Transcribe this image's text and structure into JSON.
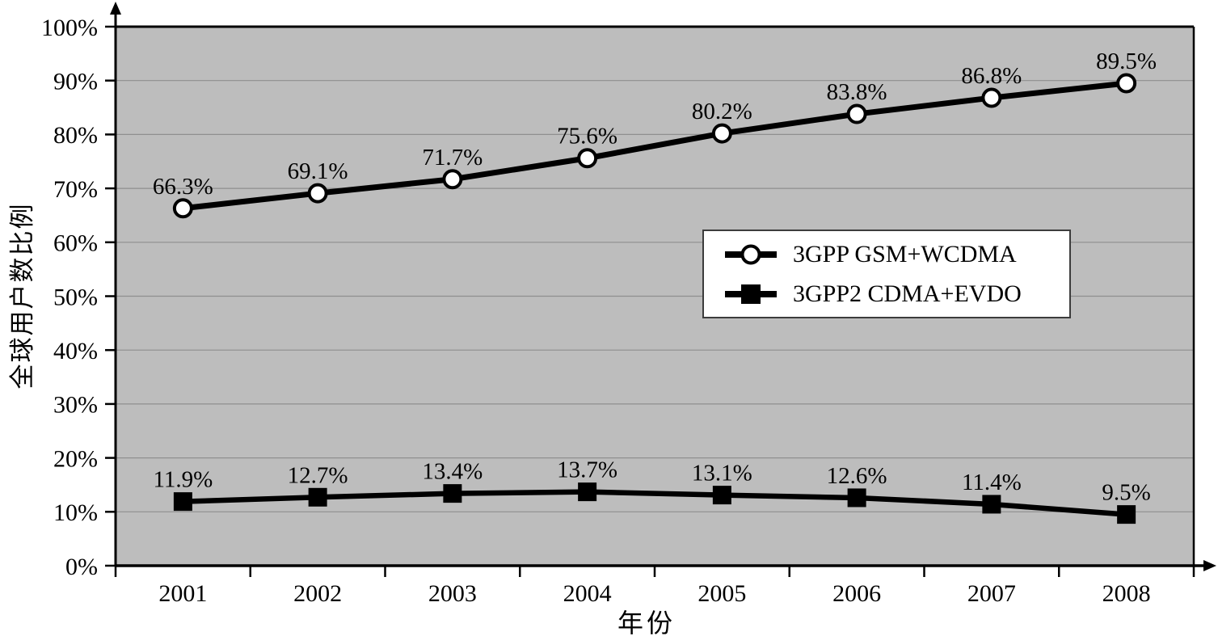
{
  "figure": {
    "background": "#ffffff",
    "plot_background": "#bdbdbd",
    "grid_color": "#8f8f8f",
    "axis_color": "#000000",
    "line_color": "#000000",
    "marker_fill_circle": "#ffffff",
    "marker_fill_square": "#000000"
  },
  "chart_data": {
    "type": "line",
    "title": "",
    "xlabel": "年份",
    "ylabel": "全球用户数比例",
    "categories": [
      "2001",
      "2002",
      "2003",
      "2004",
      "2005",
      "2006",
      "2007",
      "2008"
    ],
    "y_ticks": [
      "0%",
      "10%",
      "20%",
      "30%",
      "40%",
      "50%",
      "60%",
      "70%",
      "80%",
      "90%",
      "100%"
    ],
    "ylim": [
      0,
      100
    ],
    "grid": true,
    "legend_position": "middle-right",
    "series": [
      {
        "name": "3GPP GSM+WCDMA",
        "marker": "circle",
        "values": [
          66.3,
          69.1,
          71.7,
          75.6,
          80.2,
          83.8,
          86.8,
          89.5
        ],
        "labels": [
          "66.3%",
          "69.1%",
          "71.7%",
          "75.6%",
          "80.2%",
          "83.8%",
          "86.8%",
          "89.5%"
        ]
      },
      {
        "name": "3GPP2 CDMA+EVDO",
        "marker": "square",
        "values": [
          11.9,
          12.7,
          13.4,
          13.7,
          13.1,
          12.6,
          11.4,
          9.5
        ],
        "labels": [
          "11.9%",
          "12.7%",
          "13.4%",
          "13.7%",
          "13.1%",
          "12.6%",
          "11.4%",
          "9.5%"
        ]
      }
    ]
  }
}
